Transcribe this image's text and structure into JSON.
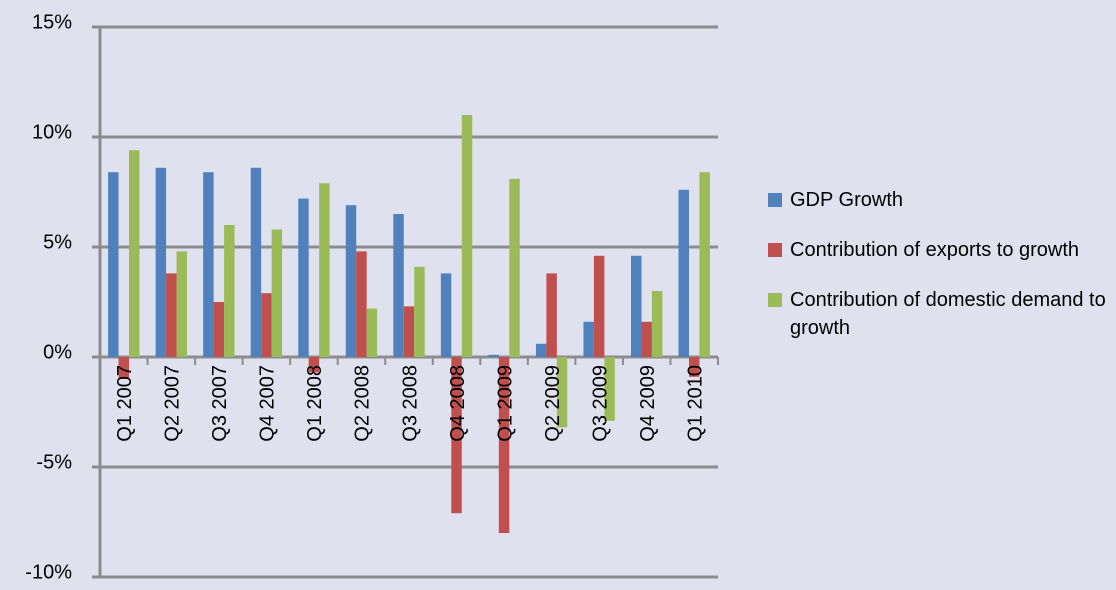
{
  "chart_data": {
    "type": "bar",
    "categories": [
      "Q1 2007",
      "Q2 2007",
      "Q3 2007",
      "Q4 2007",
      "Q1 2008",
      "Q2 2008",
      "Q3 2008",
      "Q4 2008",
      "Q1 2009",
      "Q2 2009",
      "Q3 2009",
      "Q4 2009",
      "Q1 2010"
    ],
    "series": [
      {
        "name": "GDP Growth",
        "color": "#4f81bd",
        "values": [
          8.4,
          8.6,
          8.4,
          8.6,
          7.2,
          6.9,
          6.5,
          3.8,
          0.1,
          0.6,
          1.6,
          4.6,
          7.6
        ]
      },
      {
        "name": "Contribution of exports to growth",
        "color": "#c0504d",
        "values": [
          -1.0,
          3.8,
          2.5,
          2.9,
          -0.7,
          4.8,
          2.3,
          -7.1,
          -8.0,
          3.8,
          4.6,
          1.6,
          -0.9
        ]
      },
      {
        "name": "Contribution of domestic demand to growth",
        "color": "#9bbb59",
        "values": [
          9.4,
          4.8,
          6.0,
          5.8,
          7.9,
          2.2,
          4.1,
          11.0,
          8.1,
          -3.2,
          -2.9,
          3.0,
          8.4
        ]
      }
    ],
    "ylim": [
      -10,
      15
    ],
    "yticks": [
      {
        "value": -10,
        "label": "-10%"
      },
      {
        "value": -5,
        "label": "-5%"
      },
      {
        "value": 0,
        "label": "0%"
      },
      {
        "value": 5,
        "label": "5%"
      },
      {
        "value": 10,
        "label": "10%"
      },
      {
        "value": 15,
        "label": "15%"
      }
    ],
    "grid": true,
    "legend": "right"
  }
}
